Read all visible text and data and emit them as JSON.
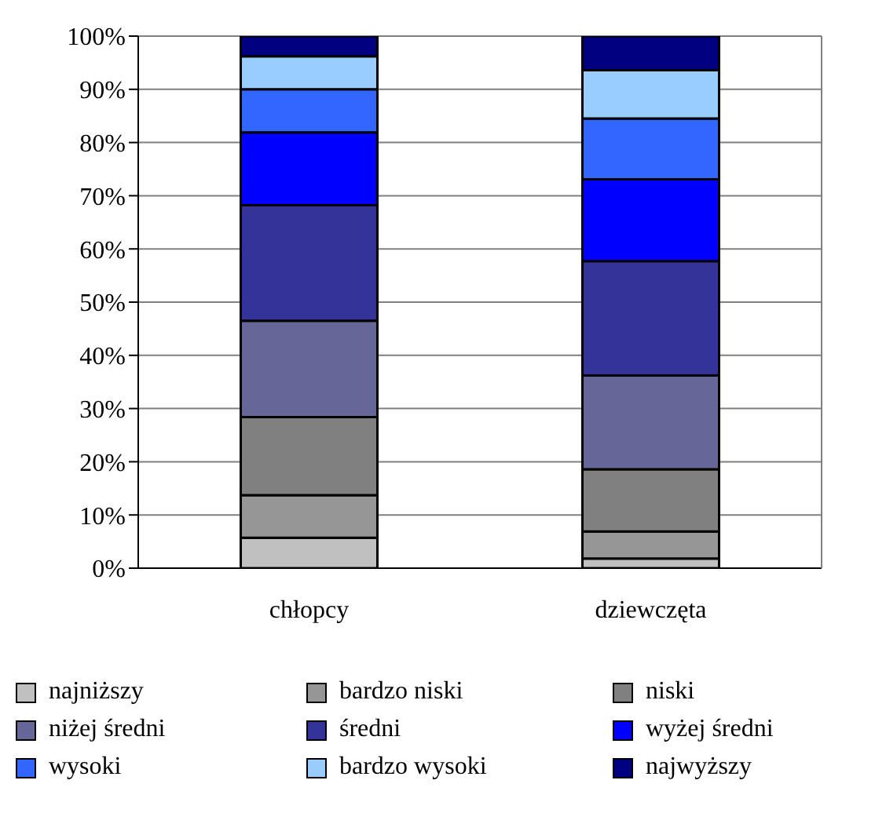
{
  "chart_data": {
    "type": "bar",
    "stacked": true,
    "categories": [
      "chłopcy",
      "dziewczęta"
    ],
    "ylim": [
      0,
      100
    ],
    "yticks": [
      {
        "value": 0,
        "label": "0%"
      },
      {
        "value": 10,
        "label": "10%"
      },
      {
        "value": 20,
        "label": "20%"
      },
      {
        "value": 30,
        "label": "30%"
      },
      {
        "value": 40,
        "label": "40%"
      },
      {
        "value": 50,
        "label": "50%"
      },
      {
        "value": 60,
        "label": "60%"
      },
      {
        "value": 70,
        "label": "70%"
      },
      {
        "value": 80,
        "label": "80%"
      },
      {
        "value": 90,
        "label": "90%"
      },
      {
        "value": 100,
        "label": "100%"
      }
    ],
    "grid": "y",
    "legend": "bottom",
    "series": [
      {
        "name": "najniższy",
        "color": "#c0c0c0",
        "values": [
          5.7,
          1.8
        ]
      },
      {
        "name": "bardzo niski",
        "color": "#969696",
        "values": [
          8,
          5.1
        ]
      },
      {
        "name": "niski",
        "color": "#808080",
        "values": [
          14.7,
          11.7
        ]
      },
      {
        "name": "niżej średni",
        "color": "#666699",
        "values": [
          18.1,
          17.6
        ]
      },
      {
        "name": "średni",
        "color": "#333399",
        "values": [
          21.7,
          21.5
        ]
      },
      {
        "name": "wyżej średni",
        "color": "#0000ff",
        "values": [
          13.7,
          15.4
        ]
      },
      {
        "name": "wysoki",
        "color": "#3366ff",
        "values": [
          8.1,
          11.4
        ]
      },
      {
        "name": "bardzo wysoki",
        "color": "#99ccff",
        "values": [
          6.2,
          9.1
        ]
      },
      {
        "name": "najwyższy",
        "color": "#000080",
        "values": [
          3.8,
          6.4
        ]
      }
    ]
  }
}
